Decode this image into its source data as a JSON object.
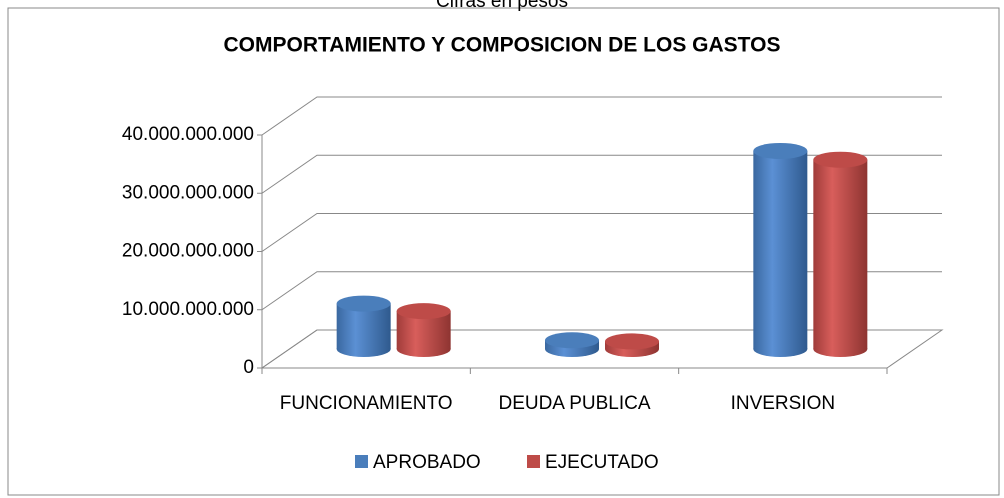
{
  "chart_data": {
    "type": "bar3d",
    "subtitle": "Cifras en pesos",
    "title": "COMPORTAMIENTO Y COMPOSICION DE LOS GASTOS",
    "categories": [
      "FUNCIONAMIENTO",
      "DEUDA PUBLICA",
      "INVERSION"
    ],
    "series": [
      {
        "name": "APROBADO",
        "color": "#4a7ebb",
        "values": [
          7800000000,
          1500000000,
          34000000000
        ]
      },
      {
        "name": "EJECUTADO",
        "color": "#be4b48",
        "values": [
          6500000000,
          1300000000,
          32500000000
        ]
      }
    ],
    "ylim": [
      0,
      40000000000
    ],
    "yticks": [
      0,
      {
        "value": 10000000000,
        "label": "10.000.000.000"
      },
      {
        "value": 20000000000,
        "label": "20.000.000.000"
      },
      {
        "value": 30000000000,
        "label": "30.000.000.000"
      },
      {
        "value": 40000000000,
        "label": "40.000.000.000"
      }
    ],
    "grid": true,
    "legend": "bottom"
  }
}
